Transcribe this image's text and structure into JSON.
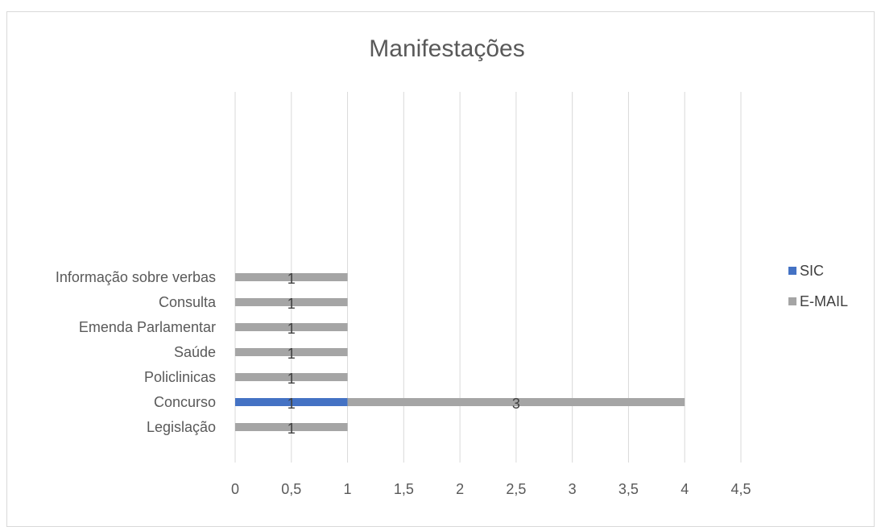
{
  "chart_data": {
    "type": "bar",
    "orientation": "horizontal",
    "stacked": true,
    "title": "Manifestações",
    "xlabel": "",
    "ylabel": "",
    "xlim": [
      0,
      4.5
    ],
    "x_ticks": [
      "0",
      "0,5",
      "1",
      "1,5",
      "2",
      "2,5",
      "3",
      "3,5",
      "4",
      "4,5"
    ],
    "categories": [
      "Legislação",
      "Concurso",
      "Policlinicas",
      "Saúde",
      "Emenda Parlamentar",
      "Consulta ",
      "Informação sobre verbas"
    ],
    "series": [
      {
        "name": "SIC",
        "color": "#4472c4",
        "values": [
          0,
          1,
          0,
          0,
          0,
          0,
          0
        ]
      },
      {
        "name": "E-MAIL",
        "color": "#a5a5a5",
        "values": [
          1,
          3,
          1,
          1,
          1,
          1,
          1
        ]
      }
    ],
    "data_labels": [
      [
        "",
        "1",
        "",
        "",
        "",
        "",
        ""
      ],
      [
        "1",
        "3",
        "1",
        "1",
        "1",
        "1",
        "1"
      ]
    ],
    "grid": "vertical gridlines",
    "legend_position": "right"
  }
}
